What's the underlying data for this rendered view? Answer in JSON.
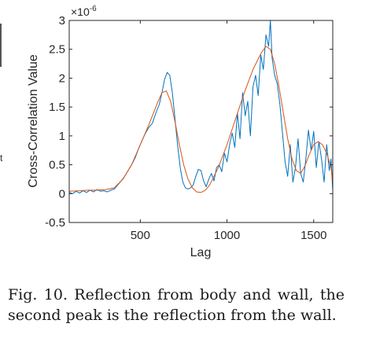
{
  "chart_data": {
    "type": "line",
    "title": "",
    "xlabel": "Lag",
    "ylabel": "Cross-Correlation Value",
    "y_exponent_label": "×10",
    "y_exponent_power": "-6",
    "xlim": [
      90,
      1610
    ],
    "ylim": [
      -0.5,
      3
    ],
    "x_ticks": [
      500,
      1000,
      1500
    ],
    "x_tick_labels": [
      "500",
      "1000",
      "1500"
    ],
    "y_ticks": [
      -0.5,
      0,
      0.5,
      1,
      1.5,
      2,
      2.5,
      3
    ],
    "y_tick_labels": [
      "-0.5",
      "0",
      "0.5",
      "1",
      "1.5",
      "2",
      "2.5",
      "3"
    ],
    "grid": false,
    "legend": "none",
    "series": [
      {
        "color": "#0072bd",
        "x": [
          90,
          110,
          130,
          150,
          170,
          190,
          210,
          230,
          250,
          270,
          290,
          310,
          330,
          350,
          370,
          390,
          410,
          430,
          450,
          470,
          490,
          510,
          530,
          550,
          570,
          590,
          610,
          625,
          640,
          655,
          670,
          685,
          700,
          715,
          730,
          745,
          760,
          775,
          790,
          805,
          820,
          835,
          850,
          865,
          880,
          895,
          910,
          925,
          940,
          955,
          970,
          985,
          1000,
          1015,
          1030,
          1045,
          1060,
          1075,
          1090,
          1105,
          1120,
          1135,
          1150,
          1165,
          1180,
          1195,
          1210,
          1225,
          1240,
          1250,
          1260,
          1275,
          1290,
          1305,
          1320,
          1335,
          1350,
          1365,
          1380,
          1395,
          1410,
          1425,
          1440,
          1455,
          1470,
          1485,
          1500,
          1515,
          1530,
          1545,
          1560,
          1575,
          1590,
          1600,
          1610
        ],
        "y": [
          0.02,
          0.0,
          0.04,
          0.01,
          0.05,
          0.02,
          0.06,
          0.03,
          0.07,
          0.04,
          0.05,
          0.03,
          0.06,
          0.08,
          0.15,
          0.22,
          0.3,
          0.4,
          0.5,
          0.62,
          0.78,
          0.92,
          1.05,
          1.15,
          1.22,
          1.4,
          1.55,
          1.75,
          1.98,
          2.1,
          2.05,
          1.75,
          1.3,
          0.85,
          0.45,
          0.2,
          0.1,
          0.08,
          0.1,
          0.15,
          0.3,
          0.42,
          0.4,
          0.22,
          0.12,
          0.25,
          0.35,
          0.22,
          0.45,
          0.5,
          0.38,
          0.7,
          0.55,
          0.85,
          1.05,
          0.8,
          1.4,
          0.95,
          1.75,
          1.35,
          1.6,
          1.0,
          1.85,
          2.05,
          1.7,
          2.4,
          2.15,
          2.75,
          2.55,
          3.0,
          2.35,
          2.05,
          1.9,
          1.55,
          1.05,
          0.55,
          0.3,
          0.85,
          0.2,
          0.45,
          0.95,
          0.35,
          0.2,
          0.6,
          1.1,
          0.75,
          1.08,
          0.45,
          0.9,
          0.6,
          0.2,
          0.85,
          0.4,
          0.6,
          0.05
        ]
      },
      {
        "color": "#d95319",
        "x": [
          90,
          150,
          200,
          250,
          300,
          350,
          400,
          450,
          500,
          550,
          600,
          625,
          650,
          675,
          700,
          725,
          750,
          775,
          800,
          825,
          850,
          875,
          900,
          950,
          1000,
          1050,
          1100,
          1150,
          1200,
          1225,
          1250,
          1275,
          1300,
          1325,
          1350,
          1375,
          1400,
          1425,
          1450,
          1475,
          1500,
          1525,
          1550,
          1575,
          1600,
          1610
        ],
        "y": [
          0.04,
          0.05,
          0.06,
          0.06,
          0.07,
          0.1,
          0.25,
          0.5,
          0.85,
          1.2,
          1.58,
          1.75,
          1.78,
          1.6,
          1.25,
          0.85,
          0.5,
          0.25,
          0.1,
          0.03,
          0.02,
          0.06,
          0.15,
          0.45,
          0.85,
          1.3,
          1.75,
          2.15,
          2.45,
          2.55,
          2.5,
          2.25,
          1.85,
          1.4,
          0.95,
          0.6,
          0.4,
          0.35,
          0.48,
          0.68,
          0.85,
          0.9,
          0.85,
          0.7,
          0.45,
          0.2
        ]
      }
    ]
  },
  "side_text": "t",
  "caption": "Fig. 10. Reflection from body and wall, the second peak is the reflection from the wall."
}
